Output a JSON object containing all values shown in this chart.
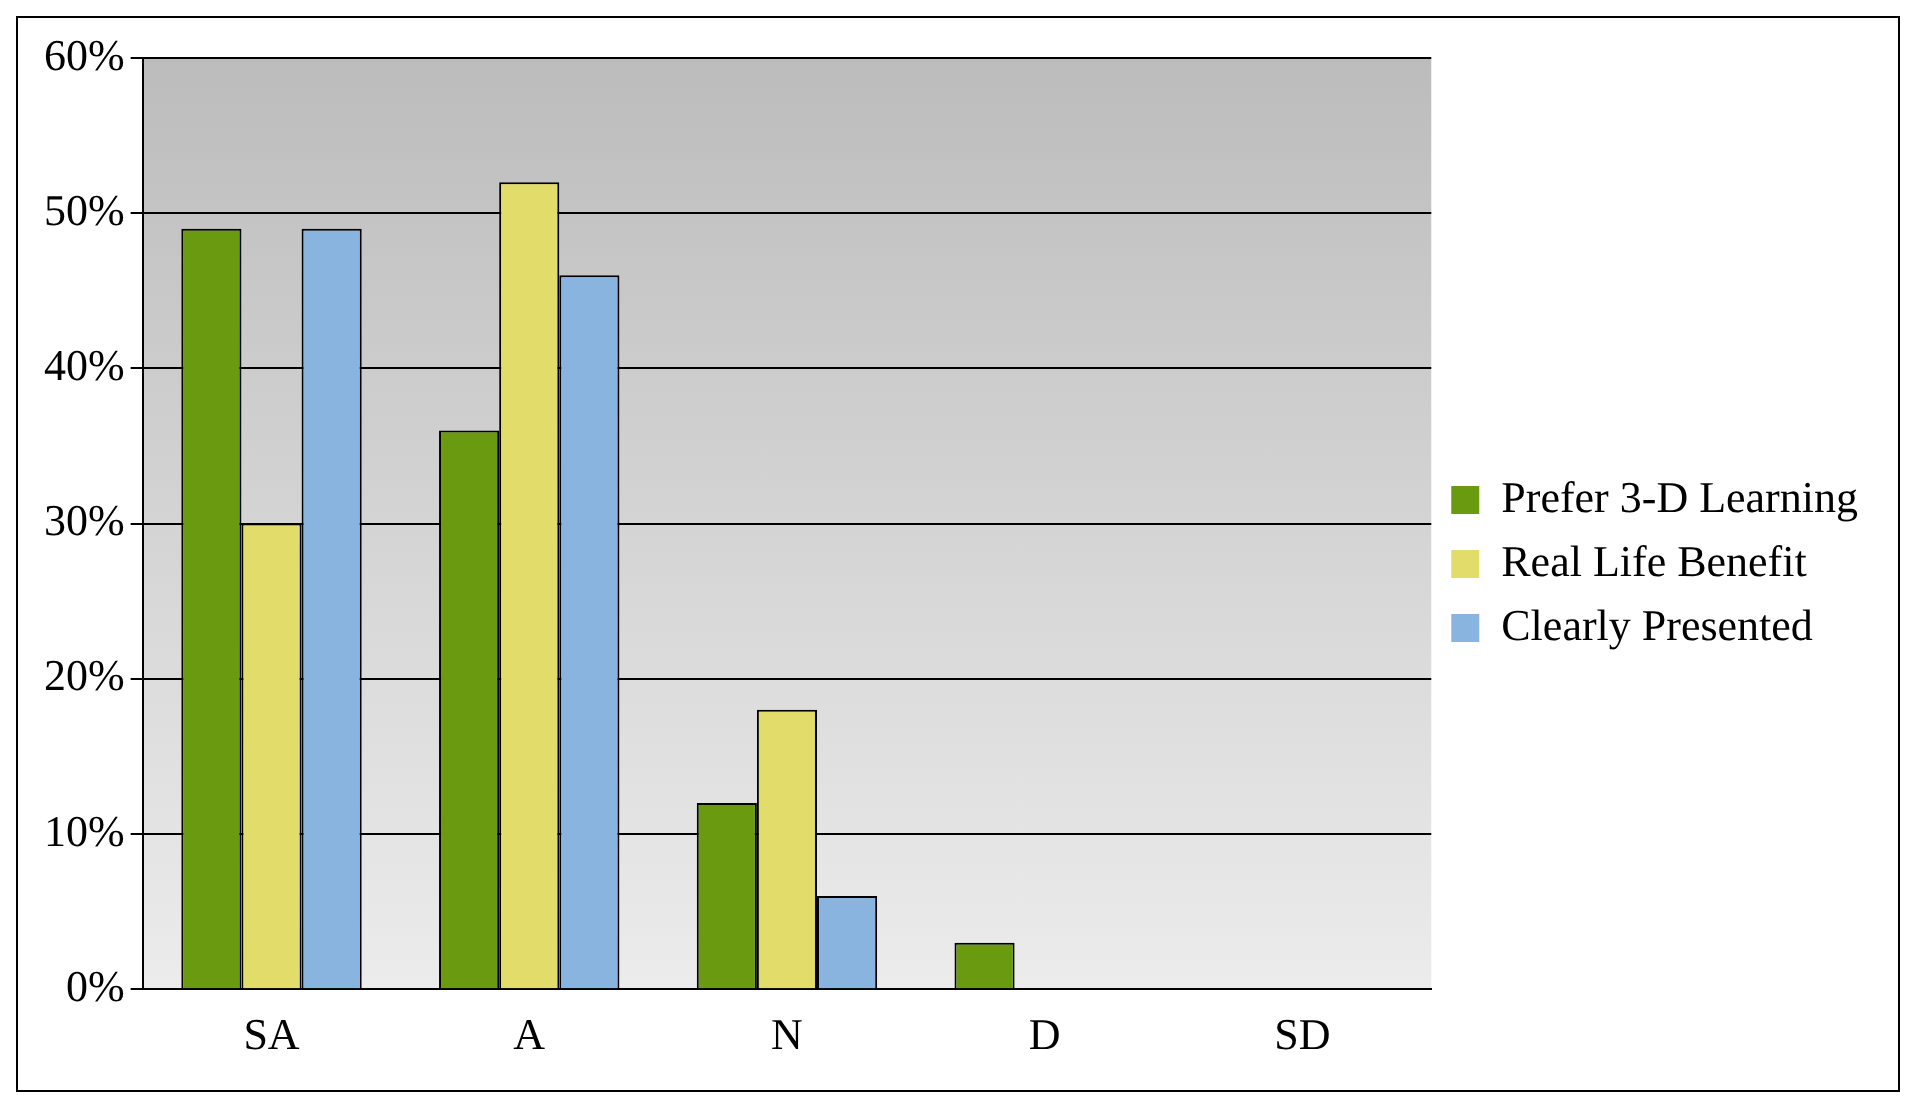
{
  "chart_data": {
    "type": "bar",
    "categories": [
      "SA",
      "A",
      "N",
      "D",
      "SD"
    ],
    "series": [
      {
        "name": "Prefer 3-D Learning",
        "color": "#6a9a10",
        "values": [
          49,
          36,
          12,
          3,
          0
        ]
      },
      {
        "name": "Real Life Benefit",
        "color": "#e2dc6a",
        "values": [
          30,
          52,
          18,
          0,
          0
        ]
      },
      {
        "name": "Clearly Presented",
        "color": "#8ab4e0",
        "values": [
          49,
          46,
          6,
          0,
          0
        ]
      }
    ],
    "ylim": [
      0,
      60
    ],
    "yticks": [
      {
        "value": 0,
        "label": "0%"
      },
      {
        "value": 10,
        "label": "10%"
      },
      {
        "value": 20,
        "label": "20%"
      },
      {
        "value": 30,
        "label": "30%"
      },
      {
        "value": 40,
        "label": "40%"
      },
      {
        "value": 50,
        "label": "50%"
      },
      {
        "value": 60,
        "label": "60%"
      }
    ],
    "grid": "y",
    "legend": "right"
  }
}
